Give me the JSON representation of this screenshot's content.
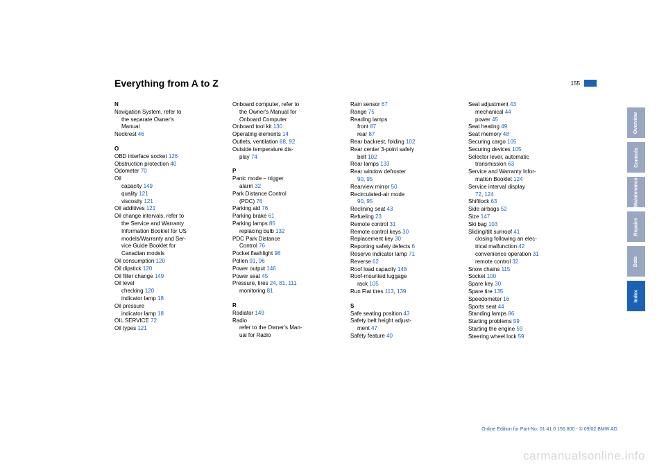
{
  "page": {
    "title": "Everything from A to Z",
    "number": "155"
  },
  "tabs": [
    {
      "label": "Overview",
      "active": false
    },
    {
      "label": "Controls",
      "active": false
    },
    {
      "label": "Maintenance",
      "active": false
    },
    {
      "label": "Repairs",
      "active": false
    },
    {
      "label": "Data",
      "active": false
    },
    {
      "label": "Index",
      "active": true
    }
  ],
  "footer": "Online Edition for Part-No. 01 41 0 156 800 - © 09/02 BMW AG",
  "watermark": "carmanualsonline.info",
  "cols": [
    [
      {
        "t": "letter",
        "text": "N"
      },
      {
        "t": "e",
        "text": "Navigation System, refer to"
      },
      {
        "t": "s",
        "text": "the separate Owner's"
      },
      {
        "t": "s",
        "text": "Manual"
      },
      {
        "t": "e",
        "text": "Neckrest ",
        "pg": "46"
      },
      {
        "t": "letter",
        "pad": true,
        "text": "O"
      },
      {
        "t": "e",
        "text": "OBD interface socket ",
        "pg": "126"
      },
      {
        "t": "e",
        "text": "Obstruction protection ",
        "pg": "40"
      },
      {
        "t": "e",
        "text": "Odometer ",
        "pg": "70"
      },
      {
        "t": "e",
        "text": "Oil"
      },
      {
        "t": "s",
        "text": "capacity ",
        "pg": "149"
      },
      {
        "t": "s",
        "text": "quality ",
        "pg": "121"
      },
      {
        "t": "s",
        "text": "viscosity ",
        "pg": "121"
      },
      {
        "t": "e",
        "text": "Oil additives ",
        "pg": "121"
      },
      {
        "t": "e",
        "text": "Oil change intervals, refer to"
      },
      {
        "t": "s",
        "text": "the Service and Warranty"
      },
      {
        "t": "s",
        "text": "Information Booklet for US"
      },
      {
        "t": "s",
        "text": "models/Warranty and Ser-"
      },
      {
        "t": "s",
        "text": "vice Guide Booklet for"
      },
      {
        "t": "s",
        "text": "Canadian models"
      },
      {
        "t": "e",
        "text": "Oil consumption ",
        "pg": "120"
      },
      {
        "t": "e",
        "text": "Oil dipstick ",
        "pg": "120"
      },
      {
        "t": "e",
        "text": "Oil filter change ",
        "pg": "149"
      },
      {
        "t": "e",
        "text": "Oil level"
      },
      {
        "t": "s",
        "text": "checking ",
        "pg": "120"
      },
      {
        "t": "s",
        "text": "indicator lamp ",
        "pg": "18"
      },
      {
        "t": "e",
        "text": "Oil pressure"
      },
      {
        "t": "s",
        "text": "indicator lamp ",
        "pg": "18"
      },
      {
        "t": "e",
        "text": "OIL SERVICE ",
        "pg": "72"
      },
      {
        "t": "e",
        "text": "Oil types ",
        "pg": "121"
      }
    ],
    [
      {
        "t": "e",
        "text": "Onboard computer, refer to"
      },
      {
        "t": "s",
        "text": "the Owner's Manual for"
      },
      {
        "t": "s",
        "text": "Onboard Computer"
      },
      {
        "t": "e",
        "text": "Onboard tool kit ",
        "pg": "130"
      },
      {
        "t": "e",
        "text": "Operating elements ",
        "pg": "14"
      },
      {
        "t": "e",
        "text": "Outlets, ventilation ",
        "pgs": [
          "88",
          "92"
        ]
      },
      {
        "t": "e",
        "text": "Outside temperature dis-"
      },
      {
        "t": "s",
        "text": "play ",
        "pg": "74"
      },
      {
        "t": "letter",
        "pad": true,
        "text": "P"
      },
      {
        "t": "e",
        "text": "Panic mode – trigger"
      },
      {
        "t": "s",
        "text": "alarm ",
        "pg": "32"
      },
      {
        "t": "e",
        "text": "Park Distance Control"
      },
      {
        "t": "s",
        "text": "(PDC) ",
        "pg": "76"
      },
      {
        "t": "e",
        "text": "Parking aid ",
        "pg": "76"
      },
      {
        "t": "e",
        "text": "Parking brake ",
        "pg": "61"
      },
      {
        "t": "e",
        "text": "Parking lamps ",
        "pg": "85"
      },
      {
        "t": "s",
        "text": "replacing bulb ",
        "pg": "132"
      },
      {
        "t": "e",
        "text": "PDC Park Distance"
      },
      {
        "t": "s",
        "text": "Control ",
        "pg": "76"
      },
      {
        "t": "e",
        "text": "Pocket flashlight ",
        "pg": "98"
      },
      {
        "t": "e",
        "text": "Pollen ",
        "pgs": [
          "91",
          "96"
        ]
      },
      {
        "t": "e",
        "text": "Power output ",
        "pg": "146"
      },
      {
        "t": "e",
        "text": "Power seat ",
        "pg": "45"
      },
      {
        "t": "e",
        "text": "Pressure, tires ",
        "pgs": [
          "24",
          "81",
          "111"
        ]
      },
      {
        "t": "s",
        "text": "monitoring ",
        "pg": "81"
      },
      {
        "t": "letter",
        "pad": true,
        "text": "R"
      },
      {
        "t": "e",
        "text": "Radiator ",
        "pg": "149"
      },
      {
        "t": "e",
        "text": "Radio"
      },
      {
        "t": "s",
        "text": "refer to the Owner's Man-"
      },
      {
        "t": "s",
        "text": "ual for Radio"
      }
    ],
    [
      {
        "t": "e",
        "text": "Rain sensor ",
        "pg": "67"
      },
      {
        "t": "e",
        "text": "Range ",
        "pg": "75"
      },
      {
        "t": "e",
        "text": "Reading lamps"
      },
      {
        "t": "s",
        "text": "front ",
        "pg": "87"
      },
      {
        "t": "s",
        "text": "rear ",
        "pg": "87"
      },
      {
        "t": "e",
        "text": "Rear backrest, folding ",
        "pg": "102"
      },
      {
        "t": "e",
        "text": "Rear center 3-point safety"
      },
      {
        "t": "s",
        "text": "belt ",
        "pg": "102"
      },
      {
        "t": "e",
        "text": "Rear lamps ",
        "pg": "133"
      },
      {
        "t": "e",
        "text": "Rear window defroster"
      },
      {
        "t": "s",
        "text": "",
        "pgs": [
          "90",
          "95"
        ]
      },
      {
        "t": "e",
        "text": "Rearview mirror ",
        "pg": "50"
      },
      {
        "t": "e",
        "text": "Recirculated-air mode"
      },
      {
        "t": "s",
        "text": "",
        "pgs": [
          "90",
          "95"
        ]
      },
      {
        "t": "e",
        "text": "Reclining seat ",
        "pg": "43"
      },
      {
        "t": "e",
        "text": "Refueling ",
        "pg": "23"
      },
      {
        "t": "e",
        "text": "Remote control ",
        "pg": "31"
      },
      {
        "t": "e",
        "text": "Remote control keys ",
        "pg": "30"
      },
      {
        "t": "e",
        "text": "Replacement key ",
        "pg": "30"
      },
      {
        "t": "e",
        "text": "Reporting safety defects ",
        "pg": "6"
      },
      {
        "t": "e",
        "text": "Reserve indicator lamp ",
        "pg": "71"
      },
      {
        "t": "e",
        "text": "Reverse ",
        "pg": "62"
      },
      {
        "t": "e",
        "text": "Roof load capacity ",
        "pg": "148"
      },
      {
        "t": "e",
        "text": "Roof-mounted luggage"
      },
      {
        "t": "s",
        "text": "rack ",
        "pg": "105"
      },
      {
        "t": "e",
        "text": "Run Flat tires ",
        "pgs": [
          "113",
          "139"
        ]
      },
      {
        "t": "letter",
        "pad": true,
        "text": "S"
      },
      {
        "t": "e",
        "text": "Safe seating position ",
        "pg": "43"
      },
      {
        "t": "e",
        "text": "Safety belt height adjust-"
      },
      {
        "t": "s",
        "text": "ment ",
        "pg": "47"
      },
      {
        "t": "e",
        "text": "Safety feature ",
        "pg": "40"
      }
    ],
    [
      {
        "t": "e",
        "text": "Seat adjustment ",
        "pg": "43"
      },
      {
        "t": "s",
        "text": "mechanical ",
        "pg": "44"
      },
      {
        "t": "s",
        "text": "power ",
        "pg": "45"
      },
      {
        "t": "e",
        "text": "Seat heating ",
        "pg": "49"
      },
      {
        "t": "e",
        "text": "Seat memory ",
        "pg": "48"
      },
      {
        "t": "e",
        "text": "Securing cargo ",
        "pg": "105"
      },
      {
        "t": "e",
        "text": "Securing devices ",
        "pg": "105"
      },
      {
        "t": "e",
        "text": "Selector lever, automatic"
      },
      {
        "t": "s",
        "text": "transmission ",
        "pg": "63"
      },
      {
        "t": "e",
        "text": "Service and Warranty Infor-"
      },
      {
        "t": "s",
        "text": "mation Booklet ",
        "pg": "124"
      },
      {
        "t": "e",
        "text": "Service interval display"
      },
      {
        "t": "s",
        "text": "",
        "pgs": [
          "72",
          "124"
        ]
      },
      {
        "t": "e",
        "text": "Shiftlock ",
        "pg": "63"
      },
      {
        "t": "e",
        "text": "Side airbags ",
        "pg": "52"
      },
      {
        "t": "e",
        "text": "Size ",
        "pg": "147"
      },
      {
        "t": "e",
        "text": "Ski bag ",
        "pg": "103"
      },
      {
        "t": "e",
        "text": "Sliding/tilt sunroof ",
        "pg": "41"
      },
      {
        "t": "s",
        "text": "closing following an elec-"
      },
      {
        "t": "s",
        "text": "trical malfunction ",
        "pg": "42"
      },
      {
        "t": "s",
        "text": "convenience operation ",
        "pg": "31"
      },
      {
        "t": "s",
        "text": "remote control ",
        "pg": "32"
      },
      {
        "t": "e",
        "text": "Snow chains ",
        "pg": "115"
      },
      {
        "t": "e",
        "text": "Socket ",
        "pg": "100"
      },
      {
        "t": "e",
        "text": "Spare key ",
        "pg": "30"
      },
      {
        "t": "e",
        "text": "Spare tire ",
        "pg": "135"
      },
      {
        "t": "e",
        "text": "Speedometer ",
        "pg": "16"
      },
      {
        "t": "e",
        "text": "Sports seat ",
        "pg": "44"
      },
      {
        "t": "e",
        "text": "Standing lamps ",
        "pg": "86"
      },
      {
        "t": "e",
        "text": "Starting problems ",
        "pg": "59"
      },
      {
        "t": "e",
        "text": "Starting the engine ",
        "pg": "59"
      },
      {
        "t": "e",
        "text": "Steering wheel lock ",
        "pg": "59"
      }
    ]
  ]
}
